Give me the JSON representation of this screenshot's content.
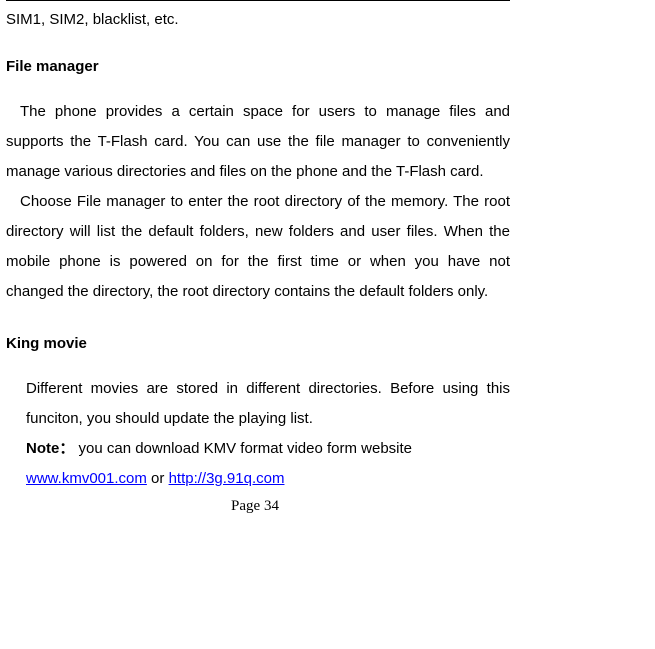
{
  "fragment": "SIM1, SIM2, blacklist, etc.",
  "sections": {
    "file_manager": {
      "heading": "File manager",
      "para1": "The phone provides a certain space for users to manage files and supports the T-Flash card. You can use the file manager to conveniently manage various directories and files on the phone and the T-Flash card.",
      "para2": "Choose File manager to enter the root directory of the memory. The root directory will list the default folders, new folders and user files. When the mobile phone is powered on for the first time or when you have not changed the directory, the root directory contains the default folders only."
    },
    "king_movie": {
      "heading": "King movie",
      "para1": "Different movies are stored in different directories. Before using this funciton, you should update the playing list.",
      "note_label": "Note：",
      "note_text": "  you can download KMV format video form website ",
      "link1_text": "www.kmv001.com",
      "link1_url": "http://www.kmv001.com",
      "connector": " or ",
      "link2_text": "http://3g.91q.com",
      "link2_url": "http://3g.91q.com"
    }
  },
  "page_number": "Page 34"
}
